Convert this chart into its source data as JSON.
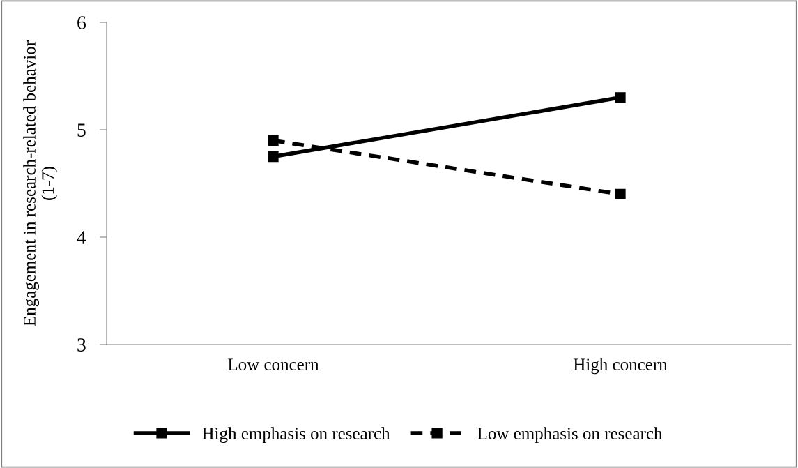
{
  "chart_data": {
    "type": "line",
    "ylabel": "Engagement in research-related behavior\n(1-7)",
    "categories": [
      "Low concern",
      "High concern"
    ],
    "series": [
      {
        "name": "High emphasis on research",
        "color": "#000000",
        "values": [
          4.75,
          5.3
        ],
        "line_style": "solid"
      },
      {
        "name": "Low emphasis on research",
        "color": "#000000",
        "values": [
          4.9,
          4.4
        ],
        "line_style": "dashed"
      }
    ],
    "ylim": [
      3,
      6
    ],
    "yticks": [
      3,
      4,
      5,
      6
    ],
    "grid": false,
    "legend": "bottom",
    "marker": "square"
  }
}
